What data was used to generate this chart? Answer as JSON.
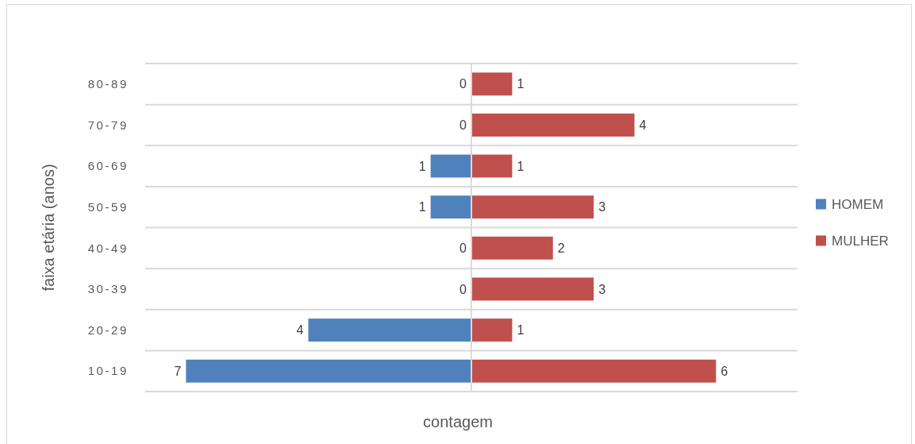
{
  "chart_data": [
    {
      "type": "bar",
      "orientation": "horizontal",
      "categories": [
        "80-89",
        "70-79",
        "60-69",
        "50-59",
        "40-49",
        "30-39",
        "20-29",
        "10-19"
      ],
      "series": [
        {
          "name": "HOMEM",
          "color": "#4f81bd",
          "values": [
            0,
            0,
            1,
            1,
            0,
            0,
            4,
            7
          ]
        }
      ],
      "xlim": [
        8,
        0
      ],
      "xlabel": "contagem",
      "ylabel": "faixa etária (anos)",
      "data_labels": true,
      "grid": "y",
      "legend": "right",
      "tick_labels": "y"
    },
    {
      "type": "bar",
      "orientation": "horizontal",
      "categories": [
        null,
        null,
        null,
        null,
        null,
        null,
        null,
        null
      ],
      "series": [
        {
          "name": "MULHER",
          "color": "#c0504d",
          "values": [
            1,
            4,
            1,
            3,
            2,
            3,
            1,
            6
          ]
        }
      ],
      "xlim": [
        0,
        8
      ],
      "data_labels": true,
      "grid": "y",
      "legend": "right",
      "tick_labels": false
    }
  ]
}
